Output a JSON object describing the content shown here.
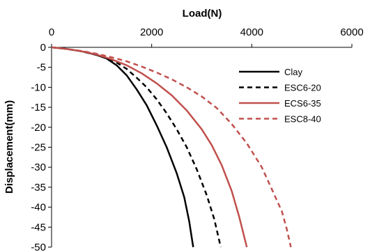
{
  "chart_data": {
    "type": "line",
    "xlabel": "Load(N)",
    "ylabel": "Displacement(mm)",
    "xlim": [
      0,
      6000
    ],
    "ylim": [
      -50,
      0
    ],
    "x_ticks": [
      "0",
      "2000",
      "4000",
      "6000"
    ],
    "y_ticks": [
      "0",
      "-5",
      "-10",
      "-15",
      "-20",
      "-25",
      "-30",
      "-35",
      "-40",
      "-45",
      "-50"
    ],
    "x_axis_position": "top",
    "grid": false,
    "legend_position": "right",
    "series": [
      {
        "name": "Clay",
        "color": "#000000",
        "dash": "solid",
        "points": [
          [
            0,
            0
          ],
          [
            300,
            -0.4
          ],
          [
            600,
            -1.0
          ],
          [
            900,
            -1.9
          ],
          [
            1100,
            -2.8
          ],
          [
            1300,
            -4.5
          ],
          [
            1500,
            -7.0
          ],
          [
            1700,
            -10.5
          ],
          [
            1900,
            -14.5
          ],
          [
            2100,
            -19.5
          ],
          [
            2300,
            -25.0
          ],
          [
            2500,
            -31.5
          ],
          [
            2650,
            -37.5
          ],
          [
            2750,
            -43.5
          ],
          [
            2830,
            -50.0
          ]
        ]
      },
      {
        "name": "ESC6-20",
        "color": "#000000",
        "dash": "dashed",
        "points": [
          [
            0,
            0
          ],
          [
            300,
            -0.4
          ],
          [
            600,
            -1.0
          ],
          [
            900,
            -1.9
          ],
          [
            1100,
            -2.7
          ],
          [
            1300,
            -3.8
          ],
          [
            1500,
            -5.4
          ],
          [
            1700,
            -7.6
          ],
          [
            1900,
            -10.0
          ],
          [
            2100,
            -13.0
          ],
          [
            2300,
            -16.5
          ],
          [
            2500,
            -20.5
          ],
          [
            2700,
            -25.0
          ],
          [
            2900,
            -30.5
          ],
          [
            3100,
            -37.0
          ],
          [
            3250,
            -43.0
          ],
          [
            3380,
            -50.0
          ]
        ]
      },
      {
        "name": "ECS6-35",
        "color": "#c0504d",
        "dash": "solid",
        "points": [
          [
            0,
            0
          ],
          [
            300,
            -0.4
          ],
          [
            600,
            -1.0
          ],
          [
            900,
            -1.8
          ],
          [
            1200,
            -3.0
          ],
          [
            1500,
            -4.5
          ],
          [
            1800,
            -6.5
          ],
          [
            2100,
            -9.0
          ],
          [
            2400,
            -12.0
          ],
          [
            2700,
            -15.8
          ],
          [
            3000,
            -20.5
          ],
          [
            3200,
            -24.5
          ],
          [
            3400,
            -29.5
          ],
          [
            3600,
            -36.0
          ],
          [
            3750,
            -42.5
          ],
          [
            3850,
            -47.5
          ],
          [
            3900,
            -50.0
          ]
        ]
      },
      {
        "name": "ESC8-40",
        "color": "#c0504d",
        "dash": "dashed",
        "points": [
          [
            0,
            0
          ],
          [
            300,
            -0.4
          ],
          [
            600,
            -0.9
          ],
          [
            900,
            -1.6
          ],
          [
            1200,
            -2.5
          ],
          [
            1500,
            -3.5
          ],
          [
            1800,
            -4.8
          ],
          [
            2100,
            -6.3
          ],
          [
            2400,
            -8.0
          ],
          [
            2700,
            -10.0
          ],
          [
            3000,
            -12.3
          ],
          [
            3300,
            -15.2
          ],
          [
            3600,
            -19.2
          ],
          [
            3900,
            -24.0
          ],
          [
            4200,
            -30.0
          ],
          [
            4400,
            -35.5
          ],
          [
            4600,
            -41.0
          ],
          [
            4700,
            -45.5
          ],
          [
            4780,
            -50.0
          ]
        ]
      }
    ]
  }
}
